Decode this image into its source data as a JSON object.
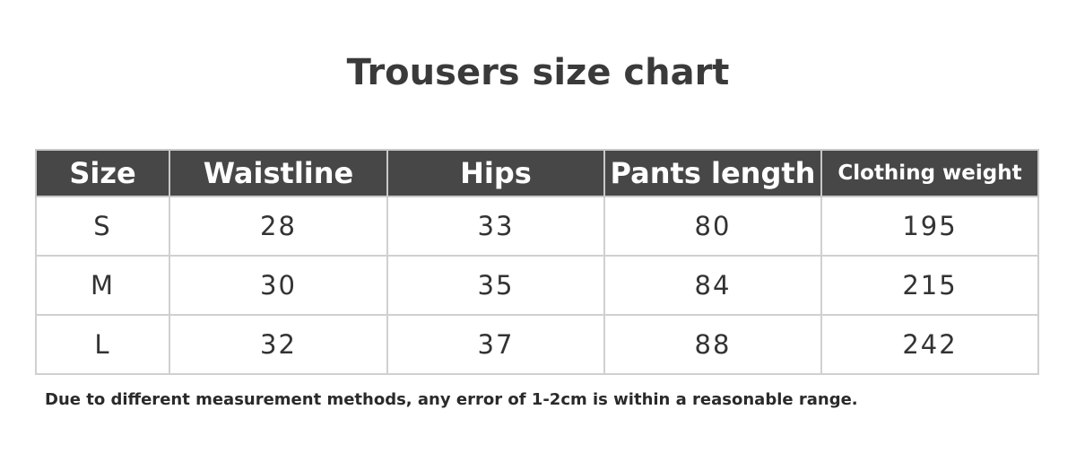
{
  "title": "Trousers size chart",
  "table": {
    "headers": [
      "Size",
      "Waistline",
      "Hips",
      "Pants length",
      "Clothing weight"
    ],
    "rows": [
      [
        "S",
        "28",
        "33",
        "80",
        "195"
      ],
      [
        "M",
        "30",
        "35",
        "84",
        "215"
      ],
      [
        "L",
        "32",
        "37",
        "88",
        "242"
      ]
    ]
  },
  "note": "Due to different measurement methods, any error of 1-2cm is within a reasonable range.",
  "colors": {
    "header_bg": "#474747",
    "header_text": "#ffffff",
    "border": "#d0d0d0"
  }
}
